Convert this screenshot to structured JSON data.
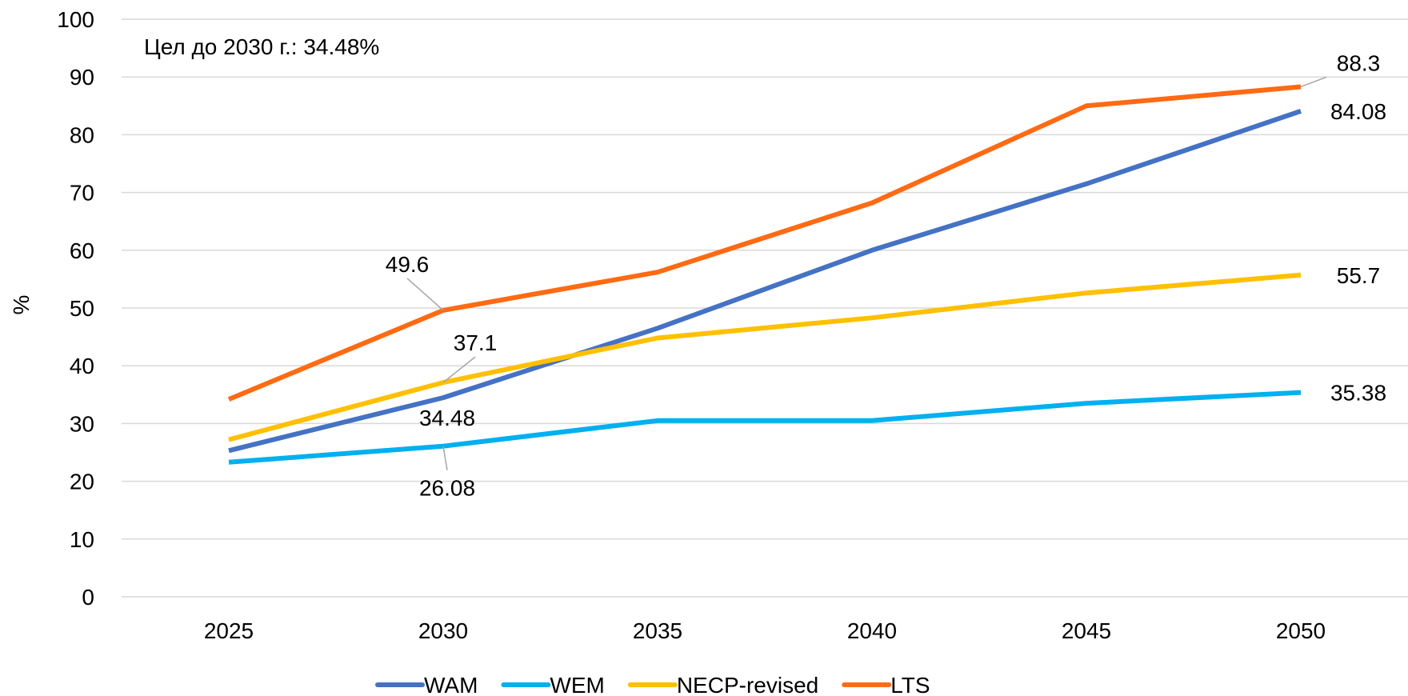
{
  "chart_data": {
    "type": "line",
    "title": "",
    "annotation": "Цел до 2030 г.: 34.48%",
    "xlabel": "",
    "ylabel": "%",
    "ylim": [
      0,
      100
    ],
    "yticks": [
      0,
      10,
      20,
      30,
      40,
      50,
      60,
      70,
      80,
      90,
      100
    ],
    "categories": [
      "2025",
      "2030",
      "2035",
      "2040",
      "2045",
      "2050"
    ],
    "grid": true,
    "legend_position": "bottom",
    "series": [
      {
        "name": "WAM",
        "color": "#4472C4",
        "values": [
          25.3,
          34.48,
          46.5,
          60.0,
          71.5,
          84.08
        ]
      },
      {
        "name": "WEM",
        "color": "#00B0F0",
        "values": [
          23.3,
          26.08,
          30.5,
          30.5,
          33.5,
          35.38
        ]
      },
      {
        "name": "NECP-revised",
        "color": "#FFC000",
        "values": [
          27.2,
          37.1,
          44.8,
          48.3,
          52.6,
          55.7
        ]
      },
      {
        "name": "LTS",
        "color": "#FF6A13",
        "values": [
          34.2,
          49.6,
          56.2,
          68.2,
          85.0,
          88.3
        ]
      }
    ],
    "data_labels": [
      {
        "series": "LTS",
        "category": "2030",
        "text": "49.6"
      },
      {
        "series": "NECP-revised",
        "category": "2030",
        "text": "37.1"
      },
      {
        "series": "WAM",
        "category": "2030",
        "text": "34.48"
      },
      {
        "series": "WEM",
        "category": "2030",
        "text": "26.08"
      },
      {
        "series": "LTS",
        "category": "2050",
        "text": "88.3"
      },
      {
        "series": "WAM",
        "category": "2050",
        "text": "84.08"
      },
      {
        "series": "NECP-revised",
        "category": "2050",
        "text": "55.7"
      },
      {
        "series": "WEM",
        "category": "2050",
        "text": "35.38"
      }
    ]
  }
}
